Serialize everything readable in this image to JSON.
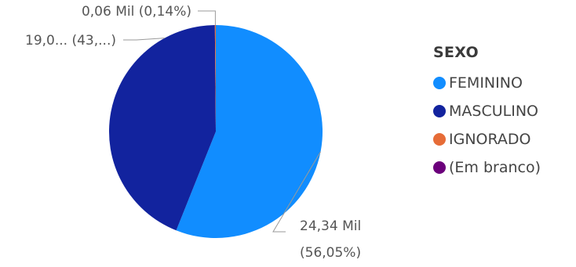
{
  "chart_data": {
    "type": "pie",
    "legend": {
      "title": "SEXO",
      "position": "right",
      "items": [
        {
          "label": "FEMININO",
          "color": "#118DFF"
        },
        {
          "label": "MASCULINO",
          "color": "#12239E"
        },
        {
          "label": "IGNORADO",
          "color": "#E66C37"
        },
        {
          "label": "(Em branco)",
          "color": "#6B007B"
        }
      ]
    },
    "slices": [
      {
        "name": "FEMININO",
        "percent": 56.05,
        "color": "#118DFF",
        "label": "24,34 Mil",
        "label_pct": "(56,05%)"
      },
      {
        "name": "MASCULINO",
        "percent": 43.81,
        "color": "#12239E",
        "label": "19,0... (43,...)"
      },
      {
        "name": "IGNORADO",
        "percent": 0.14,
        "color": "#E66C37",
        "label": "0,06 Mil (0,14%)"
      }
    ]
  }
}
